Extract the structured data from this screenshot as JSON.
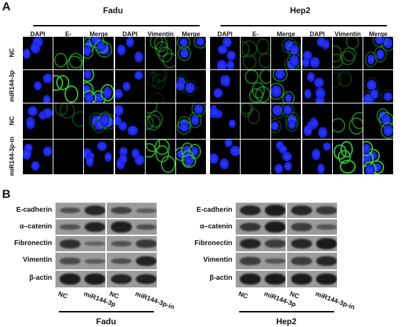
{
  "panel_a": {
    "label": "A",
    "groups": [
      {
        "name": "Fadu",
        "columns": [
          "DAPI",
          "E-cadherin",
          "Merge",
          "DAPI",
          "Vimentin",
          "Merge"
        ]
      },
      {
        "name": "Hep2",
        "columns": [
          "DAPI",
          "E-cadherin",
          "Merge",
          "DAPI",
          "Vimentin",
          "Merge"
        ]
      }
    ],
    "rows": [
      "NC",
      "miR144-3p",
      "NC",
      "miR144-3p-in"
    ],
    "green_signal": {
      "Fadu": {
        "E-cadherin": [
          0.5,
          0.9,
          0.2,
          0.0
        ],
        "Vimentin": [
          0.4,
          0.05,
          0.35,
          0.7
        ]
      },
      "Hep2": {
        "E-cadherin": [
          0.2,
          0.5,
          0.2,
          0.0
        ],
        "Vimentin": [
          0.3,
          0.05,
          0.5,
          1.0
        ]
      }
    },
    "colors": {
      "dapi": "#1a1fe0",
      "green": "#2fbf2f"
    }
  },
  "panel_b": {
    "label": "B",
    "proteins": [
      "E-cadherin",
      "α–catenin",
      "Fibronectin",
      "Vimentin",
      "β-actin"
    ],
    "lanes": [
      "NC",
      "miR144-3p",
      "NC",
      "miR144-3p-in"
    ],
    "groups": [
      {
        "name": "Fadu",
        "band_intensity": [
          [
            0.4,
            0.85,
            0.55,
            0.25
          ],
          [
            0.35,
            0.9,
            0.95,
            0.4
          ],
          [
            0.75,
            0.2,
            0.35,
            0.65
          ],
          [
            0.45,
            0.25,
            0.4,
            0.9
          ],
          [
            1,
            1,
            0.9,
            0.9
          ]
        ]
      },
      {
        "name": "Hep2",
        "band_intensity": [
          [
            0.9,
            1,
            0.85,
            0.65
          ],
          [
            0.7,
            1,
            0.6,
            0.3
          ],
          [
            0.9,
            0.6,
            0.85,
            1
          ],
          [
            0.6,
            0.3,
            0.6,
            0.85
          ],
          [
            1,
            1,
            1,
            1
          ]
        ]
      }
    ]
  }
}
